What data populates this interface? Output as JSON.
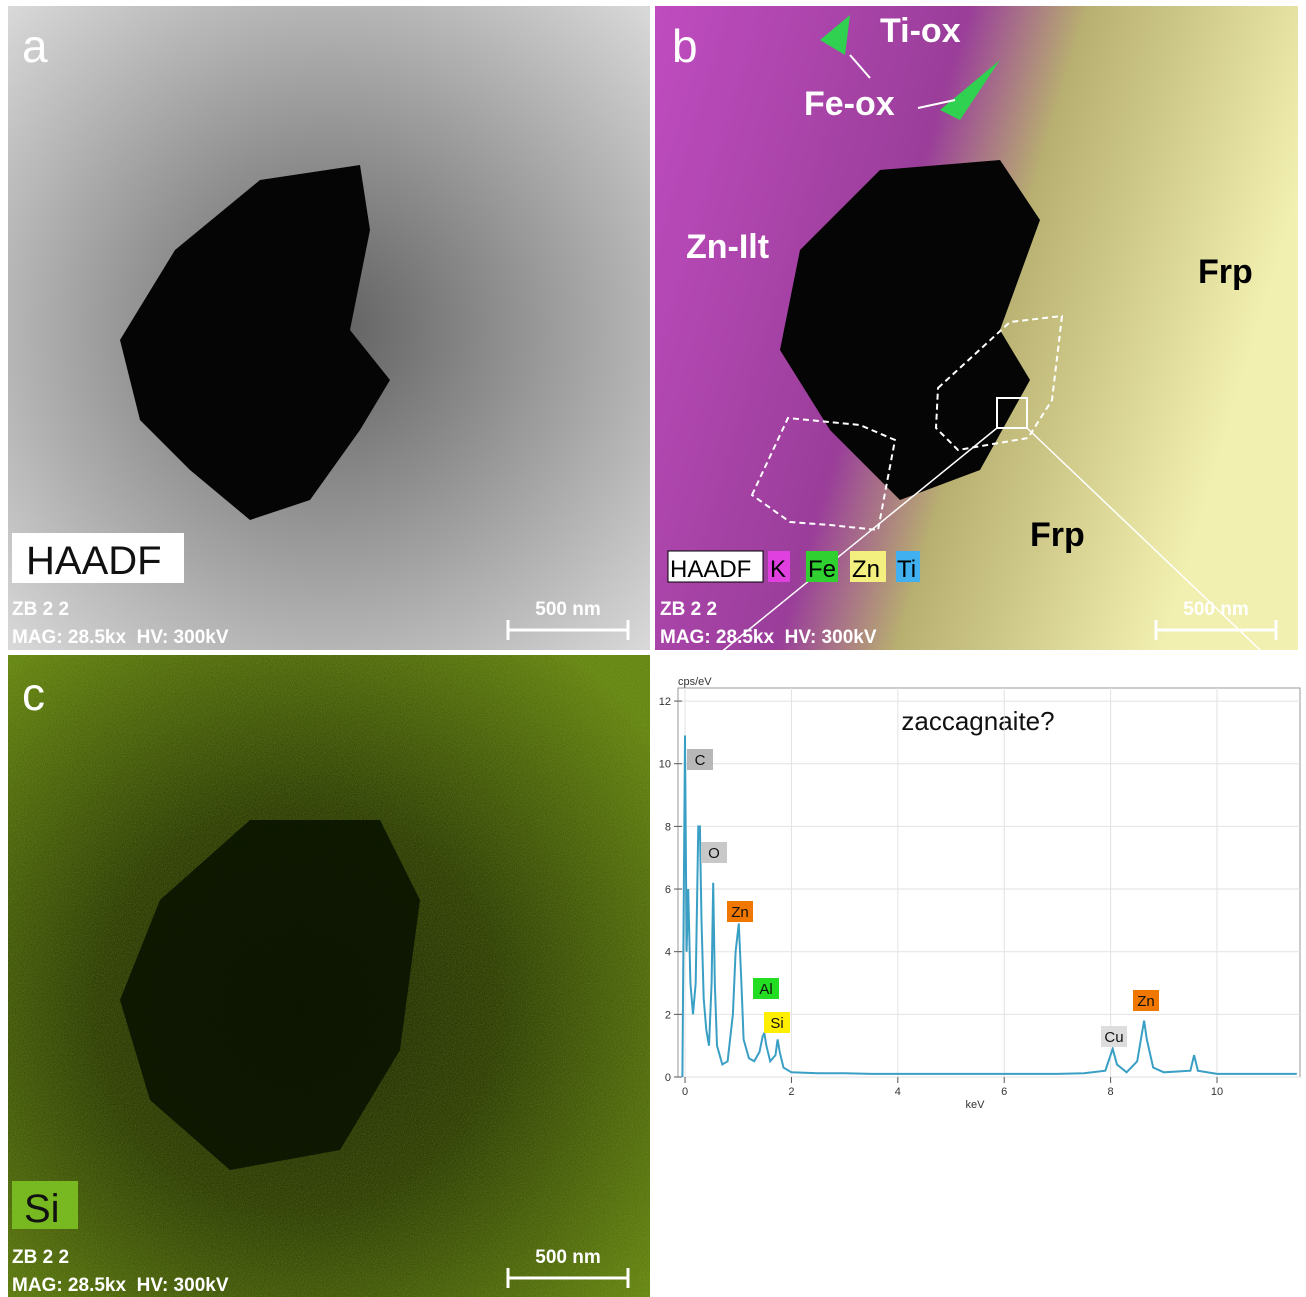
{
  "panel_a": {
    "letter": "a",
    "mode": "HAADF",
    "sample": "ZB 2 2",
    "info": "MAG: 28.5kx  HV: 300kV",
    "scale": "500 nm"
  },
  "panel_b": {
    "letter": "b",
    "labels": [
      "Ti-ox",
      "Fe-ox",
      "Zn-Ilt",
      "Frp",
      "Frp"
    ],
    "legend": [
      "HAADF",
      "K",
      "Fe",
      "Zn",
      "Ti"
    ],
    "sample": "ZB 2 2",
    "info": "MAG: 28.5kx  HV: 300kV",
    "scale": "500 nm"
  },
  "panel_c": {
    "letter": "c",
    "element": "Si",
    "sample": "ZB 2 2",
    "info": "MAG: 28.5kx  HV: 300kV",
    "scale": "500 nm"
  },
  "chart_data": {
    "type": "line",
    "title": "zaccagnaite?",
    "y_label": "cps/eV",
    "x_label": "keV",
    "x": [
      -0.05,
      0,
      0.03,
      0.06,
      0.1,
      0.15,
      0.2,
      0.25,
      0.28,
      0.31,
      0.35,
      0.4,
      0.45,
      0.5,
      0.53,
      0.56,
      0.6,
      0.7,
      0.8,
      0.9,
      0.95,
      1.01,
      1.06,
      1.1,
      1.2,
      1.3,
      1.4,
      1.46,
      1.49,
      1.53,
      1.6,
      1.7,
      1.74,
      1.78,
      1.85,
      2,
      2.5,
      3,
      3.5,
      4,
      5,
      5.6,
      6,
      6.4,
      7,
      7.5,
      7.9,
      8.04,
      8.12,
      8.3,
      8.5,
      8.6,
      8.63,
      8.68,
      8.8,
      9,
      9.5,
      9.57,
      9.64,
      10,
      11,
      11.5
    ],
    "values": [
      0,
      10.9,
      4,
      6,
      3,
      2,
      3,
      8,
      8,
      5,
      2.5,
      1.5,
      1,
      3,
      6.2,
      3,
      1,
      0.4,
      0.5,
      2,
      4,
      4.9,
      3,
      1.2,
      0.6,
      0.5,
      0.8,
      1.3,
      1.4,
      1,
      0.5,
      0.7,
      1.2,
      0.8,
      0.3,
      0.15,
      0.12,
      0.12,
      0.1,
      0.1,
      0.1,
      0.1,
      0.1,
      0.1,
      0.1,
      0.12,
      0.2,
      0.9,
      0.4,
      0.15,
      0.5,
      1.5,
      1.8,
      1.2,
      0.3,
      0.15,
      0.2,
      0.7,
      0.2,
      0.1,
      0.1,
      0.1
    ],
    "color": "#3a9fc4",
    "xlim": [
      -0.2,
      11.5
    ],
    "ylim": [
      0,
      12.2
    ],
    "xticks": [
      0,
      2,
      4,
      6,
      8,
      10
    ],
    "yticks": [
      0,
      2,
      4,
      6,
      8,
      10,
      12
    ],
    "grid": true,
    "peak_labels": [
      "C",
      "O",
      "Zn",
      "Al",
      "Si",
      "Cu",
      "Zn"
    ]
  }
}
